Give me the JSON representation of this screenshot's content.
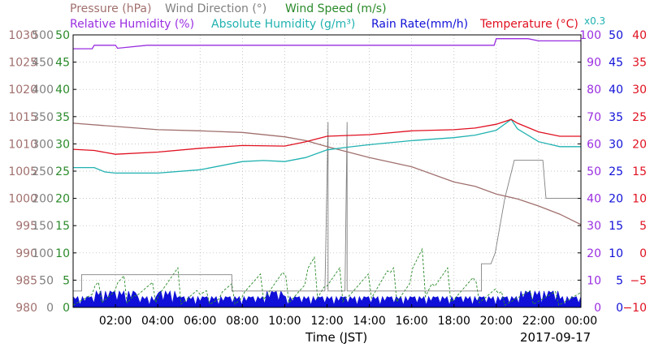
{
  "chart_data": {
    "type": "line",
    "date": "2017-09-17",
    "xlabel": "Time (JST)",
    "x_ticks": [
      "02:00",
      "04:00",
      "06:00",
      "08:00",
      "10:00",
      "12:00",
      "14:00",
      "16:00",
      "18:00",
      "20:00",
      "22:00",
      "00:00"
    ],
    "legend_row1": [
      {
        "text": "Pressure (hPa)",
        "color": "#a0706e"
      },
      {
        "text": "Wind Direction (°)",
        "color": "#808080"
      },
      {
        "text": "Wind Speed (m/s)",
        "color": "#2a8a2a"
      }
    ],
    "legend_row2": [
      {
        "text": "Relative Humidity (%)",
        "color": "#9a2ee0"
      },
      {
        "text": "Absolute Humidity (g/m³)",
        "color": "#20b2b0"
      },
      {
        "text": "Rain Rate(mm/h)",
        "color": "#1010d8"
      },
      {
        "text": "Temperature (°C)",
        "color": "#e01020"
      }
    ],
    "abs_humidity_scale_note": "x0.3",
    "axes": {
      "pressure": {
        "unit": "hPa",
        "range": [
          980,
          1030
        ],
        "ticks": [
          "1030",
          "1025",
          "1020",
          "1015",
          "1010",
          "1005",
          "1000",
          "995",
          "990",
          "985",
          "980"
        ],
        "color": "#a0706e"
      },
      "wind_direction": {
        "unit": "°",
        "range": [
          0,
          500
        ],
        "ticks": [
          "500",
          "450",
          "400",
          "350",
          "300",
          "250",
          "200",
          "150",
          "100",
          "50",
          "0"
        ],
        "color": "#808080"
      },
      "wind_speed": {
        "unit": "m/s",
        "range": [
          0,
          50
        ],
        "ticks": [
          "50",
          "45",
          "40",
          "35",
          "30",
          "25",
          "20",
          "15",
          "10",
          "5",
          "0"
        ],
        "color": "#2a8a2a"
      },
      "relative_humidity": {
        "unit": "%",
        "range": [
          0,
          100
        ],
        "ticks": [
          "100",
          "90",
          "80",
          "70",
          "60",
          "50",
          "40",
          "30",
          "20",
          "10",
          "0"
        ],
        "color": "#9a2ee0"
      },
      "rain_rate": {
        "unit": "mm/h",
        "range": [
          0,
          50
        ],
        "ticks": [
          "50",
          "45",
          "40",
          "35",
          "30",
          "25",
          "20",
          "15",
          "10",
          "5",
          "0"
        ],
        "color": "#1010d8"
      },
      "temperature": {
        "unit": "°C",
        "range": [
          -10,
          40
        ],
        "ticks": [
          "40",
          "35",
          "30",
          "25",
          "20",
          "15",
          "10",
          "5",
          "0",
          "−5",
          "−10"
        ],
        "color": "#e01020"
      }
    },
    "series": [
      {
        "name": "Pressure (hPa)",
        "color": "#a0706e",
        "hours": [
          0,
          2,
          4,
          6,
          8,
          10,
          11,
          12,
          14,
          16,
          18,
          19,
          20,
          21,
          22,
          23,
          24
        ],
        "values": [
          1013.8,
          1013.2,
          1012.6,
          1012.4,
          1012.1,
          1011.3,
          1010.6,
          1009.5,
          1007.5,
          1005.8,
          1003.0,
          1002.2,
          1000.8,
          999.9,
          998.6,
          997.1,
          995.2
        ]
      },
      {
        "name": "Relative Humidity (%)",
        "color": "#9a2ee0",
        "hours": [
          0,
          0.9,
          1.0,
          2.0,
          2.1,
          3.5,
          4,
          8,
          8.5,
          9,
          10,
          12,
          14,
          16,
          18,
          19.9,
          20.0,
          21.5,
          22,
          24
        ],
        "values": [
          94.9,
          94.9,
          96.2,
          96.2,
          95.1,
          96.2,
          96.2,
          96.2,
          96.2,
          96.2,
          96.2,
          96.2,
          96.2,
          96.2,
          96.2,
          96.2,
          98.6,
          98.6,
          97.8,
          97.8
        ]
      },
      {
        "name": "Absolute Humidity (g/m³)",
        "color": "#20b2b0",
        "hours": [
          0,
          1,
          1.5,
          2,
          4,
          6,
          8,
          9,
          10,
          11,
          12,
          13,
          14,
          16,
          18,
          19,
          20,
          20.7,
          21,
          22,
          23,
          24
        ],
        "values": [
          51.3,
          51.3,
          49.7,
          49.3,
          49.3,
          50.5,
          53.5,
          53.9,
          53.5,
          55.0,
          57.8,
          58.8,
          59.7,
          61.2,
          62.3,
          63.2,
          65.0,
          69.0,
          65.5,
          60.8,
          59.0,
          59.0
        ]
      },
      {
        "name": "Temperature (°C)",
        "color": "#e01020",
        "hours": [
          0,
          1,
          2,
          4,
          6,
          8,
          10,
          11,
          12,
          14,
          16,
          18,
          19,
          20,
          20.7,
          21,
          22,
          23,
          24
        ],
        "values": [
          19.0,
          18.8,
          18.1,
          18.5,
          19.2,
          19.7,
          19.6,
          20.4,
          21.4,
          21.7,
          22.4,
          22.6,
          22.9,
          23.6,
          24.5,
          23.8,
          22.2,
          21.4,
          21.4
        ]
      },
      {
        "name": "Wind Direction (°)",
        "color": "#808080",
        "hours": [
          0,
          0.4,
          0.4,
          3.3,
          3.3,
          7.5,
          7.5,
          11.9,
          11.9,
          12.05,
          12.05,
          12.15,
          12.15,
          12.85,
          12.85,
          12.95,
          12.95,
          19.3,
          19.3,
          19.75,
          19.75,
          19.95,
          19.95,
          20.4,
          20.4,
          20.85,
          20.85,
          22.2,
          22.2,
          22.35,
          22.35,
          24
        ],
        "values": [
          30,
          30,
          60,
          60,
          60,
          60,
          30,
          30,
          30,
          340,
          30,
          30,
          30,
          30,
          30,
          340,
          30,
          30,
          80,
          80,
          80,
          100,
          100,
          200,
          200,
          270,
          270,
          270,
          270,
          200,
          200,
          200
        ]
      },
      {
        "name": "Wind Speed (m/s)",
        "color": "#2a8a2a",
        "hours": [
          0,
          1,
          2,
          3,
          4,
          5,
          6,
          7,
          8,
          9,
          10,
          11,
          12,
          13,
          14,
          15,
          16,
          17,
          18,
          19,
          20,
          21,
          22,
          23,
          24
        ],
        "values": [
          2,
          3,
          4,
          3,
          5,
          3,
          2,
          3,
          4,
          5,
          4,
          6,
          5,
          4,
          6,
          5,
          7,
          5,
          4,
          3,
          2,
          2,
          2,
          2,
          2
        ]
      },
      {
        "name": "Rain Rate(mm/h)",
        "color": "#1010d8",
        "hours": [
          0,
          1,
          2,
          3,
          4,
          5,
          6,
          7,
          8,
          9,
          10,
          11,
          12,
          13,
          14,
          15,
          16,
          17,
          18,
          19,
          20,
          21,
          22,
          23,
          24
        ],
        "values": [
          2,
          3,
          3,
          2,
          3,
          2,
          2,
          2,
          2,
          3,
          2,
          2,
          2,
          2,
          2,
          2,
          2,
          2,
          2,
          2,
          2,
          3,
          3,
          2,
          2
        ]
      }
    ]
  }
}
